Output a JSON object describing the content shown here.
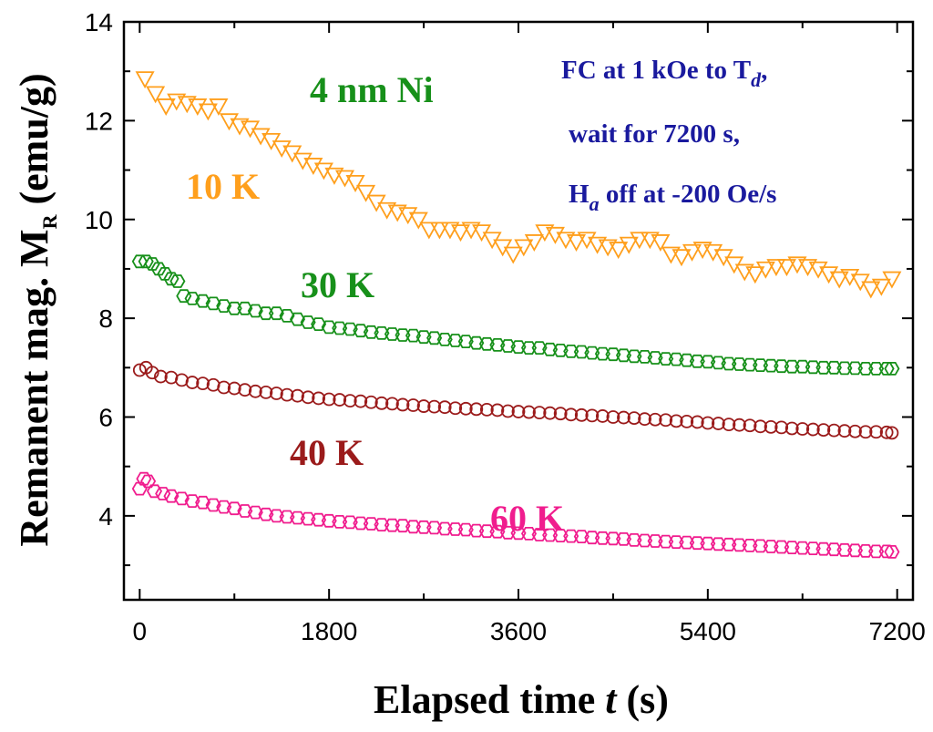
{
  "chart_data": {
    "type": "scatter",
    "title": "",
    "xlabel_prefix": "Elapsed time ",
    "xlabel_var": "t",
    "xlabel_unit": " (s)",
    "ylabel_main": "Remanent mag. M",
    "ylabel_sub": "R",
    "ylabel_unit": " (emu/g)",
    "xlim": [
      -150,
      7350
    ],
    "ylim": [
      2.3,
      14
    ],
    "xticks": [
      0,
      1800,
      3600,
      5400,
      7200
    ],
    "yticks": [
      4,
      6,
      8,
      10,
      12,
      14
    ],
    "sample_label": "4 nm Ni",
    "annotation": {
      "line1_a": "FC at 1 kOe to T",
      "line1_sub": "d",
      "line1_b": ",",
      "line2": "wait for 7200 s,",
      "line3_a": "H",
      "line3_sub": "a",
      "line3_b": " off at -200 Oe/s"
    },
    "series": [
      {
        "name": "10 K",
        "marker": "triangle-down",
        "color": "#FF9F1C",
        "points": [
          [
            50,
            12.85
          ],
          [
            150,
            12.55
          ],
          [
            250,
            12.3
          ],
          [
            350,
            12.4
          ],
          [
            450,
            12.35
          ],
          [
            550,
            12.3
          ],
          [
            650,
            12.2
          ],
          [
            750,
            12.3
          ],
          [
            850,
            12.0
          ],
          [
            950,
            11.9
          ],
          [
            1050,
            11.85
          ],
          [
            1150,
            11.7
          ],
          [
            1250,
            11.6
          ],
          [
            1350,
            11.45
          ],
          [
            1450,
            11.35
          ],
          [
            1550,
            11.2
          ],
          [
            1650,
            11.1
          ],
          [
            1750,
            11.0
          ],
          [
            1850,
            10.9
          ],
          [
            1950,
            10.85
          ],
          [
            2050,
            10.75
          ],
          [
            2150,
            10.55
          ],
          [
            2250,
            10.35
          ],
          [
            2350,
            10.2
          ],
          [
            2450,
            10.15
          ],
          [
            2550,
            10.1
          ],
          [
            2650,
            10.0
          ],
          [
            2750,
            9.8
          ],
          [
            2850,
            9.8
          ],
          [
            2950,
            9.8
          ],
          [
            3050,
            9.75
          ],
          [
            3150,
            9.8
          ],
          [
            3250,
            9.75
          ],
          [
            3350,
            9.6
          ],
          [
            3450,
            9.45
          ],
          [
            3550,
            9.3
          ],
          [
            3650,
            9.45
          ],
          [
            3750,
            9.55
          ],
          [
            3850,
            9.75
          ],
          [
            3950,
            9.7
          ],
          [
            4050,
            9.6
          ],
          [
            4150,
            9.55
          ],
          [
            4250,
            9.6
          ],
          [
            4350,
            9.5
          ],
          [
            4450,
            9.45
          ],
          [
            4550,
            9.4
          ],
          [
            4650,
            9.5
          ],
          [
            4750,
            9.6
          ],
          [
            4850,
            9.6
          ],
          [
            4950,
            9.55
          ],
          [
            5050,
            9.3
          ],
          [
            5150,
            9.25
          ],
          [
            5250,
            9.35
          ],
          [
            5350,
            9.4
          ],
          [
            5450,
            9.35
          ],
          [
            5550,
            9.25
          ],
          [
            5650,
            9.1
          ],
          [
            5750,
            8.95
          ],
          [
            5850,
            8.9
          ],
          [
            5950,
            9.0
          ],
          [
            6050,
            9.05
          ],
          [
            6150,
            9.05
          ],
          [
            6250,
            9.1
          ],
          [
            6350,
            9.05
          ],
          [
            6450,
            9.0
          ],
          [
            6550,
            8.9
          ],
          [
            6650,
            8.8
          ],
          [
            6750,
            8.85
          ],
          [
            6850,
            8.75
          ],
          [
            6950,
            8.6
          ],
          [
            7050,
            8.65
          ],
          [
            7150,
            8.8
          ]
        ]
      },
      {
        "name": "30 K",
        "marker": "hexagon",
        "color": "#17901A",
        "points": [
          [
            0,
            9.15
          ],
          [
            60,
            9.15
          ],
          [
            120,
            9.1
          ],
          [
            180,
            9.0
          ],
          [
            240,
            8.9
          ],
          [
            300,
            8.8
          ],
          [
            360,
            8.75
          ],
          [
            420,
            8.45
          ],
          [
            500,
            8.4
          ],
          [
            600,
            8.35
          ],
          [
            700,
            8.3
          ],
          [
            800,
            8.25
          ],
          [
            900,
            8.2
          ],
          [
            1000,
            8.2
          ],
          [
            1100,
            8.15
          ],
          [
            1200,
            8.1
          ],
          [
            1300,
            8.1
          ],
          [
            1400,
            8.05
          ],
          [
            1500,
            7.98
          ],
          [
            1600,
            7.92
          ],
          [
            1700,
            7.88
          ],
          [
            1800,
            7.82
          ],
          [
            1900,
            7.8
          ],
          [
            2000,
            7.78
          ],
          [
            2100,
            7.75
          ],
          [
            2200,
            7.72
          ],
          [
            2300,
            7.7
          ],
          [
            2400,
            7.68
          ],
          [
            2500,
            7.66
          ],
          [
            2600,
            7.65
          ],
          [
            2700,
            7.62
          ],
          [
            2800,
            7.6
          ],
          [
            2900,
            7.57
          ],
          [
            3000,
            7.55
          ],
          [
            3100,
            7.53
          ],
          [
            3200,
            7.5
          ],
          [
            3300,
            7.48
          ],
          [
            3400,
            7.46
          ],
          [
            3500,
            7.44
          ],
          [
            3600,
            7.42
          ],
          [
            3700,
            7.4
          ],
          [
            3800,
            7.4
          ],
          [
            3900,
            7.37
          ],
          [
            4000,
            7.35
          ],
          [
            4100,
            7.33
          ],
          [
            4200,
            7.32
          ],
          [
            4300,
            7.3
          ],
          [
            4400,
            7.28
          ],
          [
            4500,
            7.27
          ],
          [
            4600,
            7.25
          ],
          [
            4700,
            7.23
          ],
          [
            4800,
            7.22
          ],
          [
            4900,
            7.2
          ],
          [
            5000,
            7.18
          ],
          [
            5100,
            7.17
          ],
          [
            5200,
            7.15
          ],
          [
            5300,
            7.13
          ],
          [
            5400,
            7.12
          ],
          [
            5500,
            7.1
          ],
          [
            5600,
            7.08
          ],
          [
            5700,
            7.07
          ],
          [
            5800,
            7.06
          ],
          [
            5900,
            7.05
          ],
          [
            6000,
            7.04
          ],
          [
            6100,
            7.03
          ],
          [
            6200,
            7.02
          ],
          [
            6300,
            7.02
          ],
          [
            6400,
            7.01
          ],
          [
            6500,
            7.0
          ],
          [
            6600,
            7.0
          ],
          [
            6700,
            6.99
          ],
          [
            6800,
            6.99
          ],
          [
            6900,
            6.98
          ],
          [
            7000,
            6.98
          ],
          [
            7100,
            6.98
          ],
          [
            7150,
            6.98
          ]
        ]
      },
      {
        "name": "40 K",
        "marker": "circle",
        "color": "#9B1B1B",
        "points": [
          [
            0,
            6.95
          ],
          [
            60,
            7.0
          ],
          [
            120,
            6.9
          ],
          [
            200,
            6.82
          ],
          [
            300,
            6.8
          ],
          [
            400,
            6.75
          ],
          [
            500,
            6.7
          ],
          [
            600,
            6.68
          ],
          [
            700,
            6.65
          ],
          [
            800,
            6.6
          ],
          [
            900,
            6.58
          ],
          [
            1000,
            6.55
          ],
          [
            1100,
            6.52
          ],
          [
            1200,
            6.5
          ],
          [
            1300,
            6.48
          ],
          [
            1400,
            6.45
          ],
          [
            1500,
            6.43
          ],
          [
            1600,
            6.4
          ],
          [
            1700,
            6.38
          ],
          [
            1800,
            6.36
          ],
          [
            1900,
            6.35
          ],
          [
            2000,
            6.33
          ],
          [
            2100,
            6.32
          ],
          [
            2200,
            6.3
          ],
          [
            2300,
            6.28
          ],
          [
            2400,
            6.27
          ],
          [
            2500,
            6.25
          ],
          [
            2600,
            6.24
          ],
          [
            2700,
            6.22
          ],
          [
            2800,
            6.21
          ],
          [
            2900,
            6.2
          ],
          [
            3000,
            6.18
          ],
          [
            3100,
            6.17
          ],
          [
            3200,
            6.16
          ],
          [
            3300,
            6.15
          ],
          [
            3400,
            6.14
          ],
          [
            3500,
            6.12
          ],
          [
            3600,
            6.11
          ],
          [
            3700,
            6.1
          ],
          [
            3800,
            6.09
          ],
          [
            3900,
            6.08
          ],
          [
            4000,
            6.07
          ],
          [
            4100,
            6.05
          ],
          [
            4200,
            6.04
          ],
          [
            4300,
            6.03
          ],
          [
            4400,
            6.02
          ],
          [
            4500,
            6.0
          ],
          [
            4600,
            5.99
          ],
          [
            4700,
            5.98
          ],
          [
            4800,
            5.96
          ],
          [
            4900,
            5.95
          ],
          [
            5000,
            5.94
          ],
          [
            5100,
            5.92
          ],
          [
            5200,
            5.91
          ],
          [
            5300,
            5.9
          ],
          [
            5400,
            5.88
          ],
          [
            5500,
            5.87
          ],
          [
            5600,
            5.85
          ],
          [
            5700,
            5.84
          ],
          [
            5800,
            5.83
          ],
          [
            5900,
            5.81
          ],
          [
            6000,
            5.8
          ],
          [
            6100,
            5.79
          ],
          [
            6200,
            5.77
          ],
          [
            6300,
            5.76
          ],
          [
            6400,
            5.75
          ],
          [
            6500,
            5.74
          ],
          [
            6600,
            5.73
          ],
          [
            6700,
            5.72
          ],
          [
            6800,
            5.71
          ],
          [
            6900,
            5.7
          ],
          [
            7000,
            5.7
          ],
          [
            7100,
            5.69
          ],
          [
            7150,
            5.68
          ]
        ]
      },
      {
        "name": "60 K",
        "marker": "hexagon",
        "color": "#F01D8E",
        "points": [
          [
            0,
            4.55
          ],
          [
            40,
            4.75
          ],
          [
            80,
            4.7
          ],
          [
            140,
            4.5
          ],
          [
            220,
            4.45
          ],
          [
            300,
            4.4
          ],
          [
            400,
            4.35
          ],
          [
            500,
            4.3
          ],
          [
            600,
            4.27
          ],
          [
            700,
            4.22
          ],
          [
            800,
            4.18
          ],
          [
            900,
            4.15
          ],
          [
            1000,
            4.1
          ],
          [
            1100,
            4.07
          ],
          [
            1200,
            4.03
          ],
          [
            1300,
            4.0
          ],
          [
            1400,
            3.98
          ],
          [
            1500,
            3.96
          ],
          [
            1600,
            3.94
          ],
          [
            1700,
            3.92
          ],
          [
            1800,
            3.9
          ],
          [
            1900,
            3.88
          ],
          [
            2000,
            3.87
          ],
          [
            2100,
            3.85
          ],
          [
            2200,
            3.84
          ],
          [
            2300,
            3.82
          ],
          [
            2400,
            3.81
          ],
          [
            2500,
            3.8
          ],
          [
            2600,
            3.78
          ],
          [
            2700,
            3.77
          ],
          [
            2800,
            3.76
          ],
          [
            2900,
            3.74
          ],
          [
            3000,
            3.73
          ],
          [
            3100,
            3.72
          ],
          [
            3200,
            3.7
          ],
          [
            3300,
            3.69
          ],
          [
            3400,
            3.68
          ],
          [
            3500,
            3.66
          ],
          [
            3600,
            3.65
          ],
          [
            3700,
            3.64
          ],
          [
            3800,
            3.62
          ],
          [
            3900,
            3.61
          ],
          [
            4000,
            3.6
          ],
          [
            4100,
            3.59
          ],
          [
            4200,
            3.58
          ],
          [
            4300,
            3.56
          ],
          [
            4400,
            3.55
          ],
          [
            4500,
            3.54
          ],
          [
            4600,
            3.53
          ],
          [
            4700,
            3.51
          ],
          [
            4800,
            3.5
          ],
          [
            4900,
            3.49
          ],
          [
            5000,
            3.48
          ],
          [
            5100,
            3.47
          ],
          [
            5200,
            3.46
          ],
          [
            5300,
            3.45
          ],
          [
            5400,
            3.44
          ],
          [
            5500,
            3.43
          ],
          [
            5600,
            3.42
          ],
          [
            5700,
            3.41
          ],
          [
            5800,
            3.4
          ],
          [
            5900,
            3.39
          ],
          [
            6000,
            3.38
          ],
          [
            6100,
            3.37
          ],
          [
            6200,
            3.36
          ],
          [
            6300,
            3.35
          ],
          [
            6400,
            3.34
          ],
          [
            6500,
            3.33
          ],
          [
            6600,
            3.32
          ],
          [
            6700,
            3.31
          ],
          [
            6800,
            3.3
          ],
          [
            6900,
            3.29
          ],
          [
            7000,
            3.28
          ],
          [
            7100,
            3.28
          ],
          [
            7150,
            3.27
          ]
        ]
      }
    ]
  }
}
